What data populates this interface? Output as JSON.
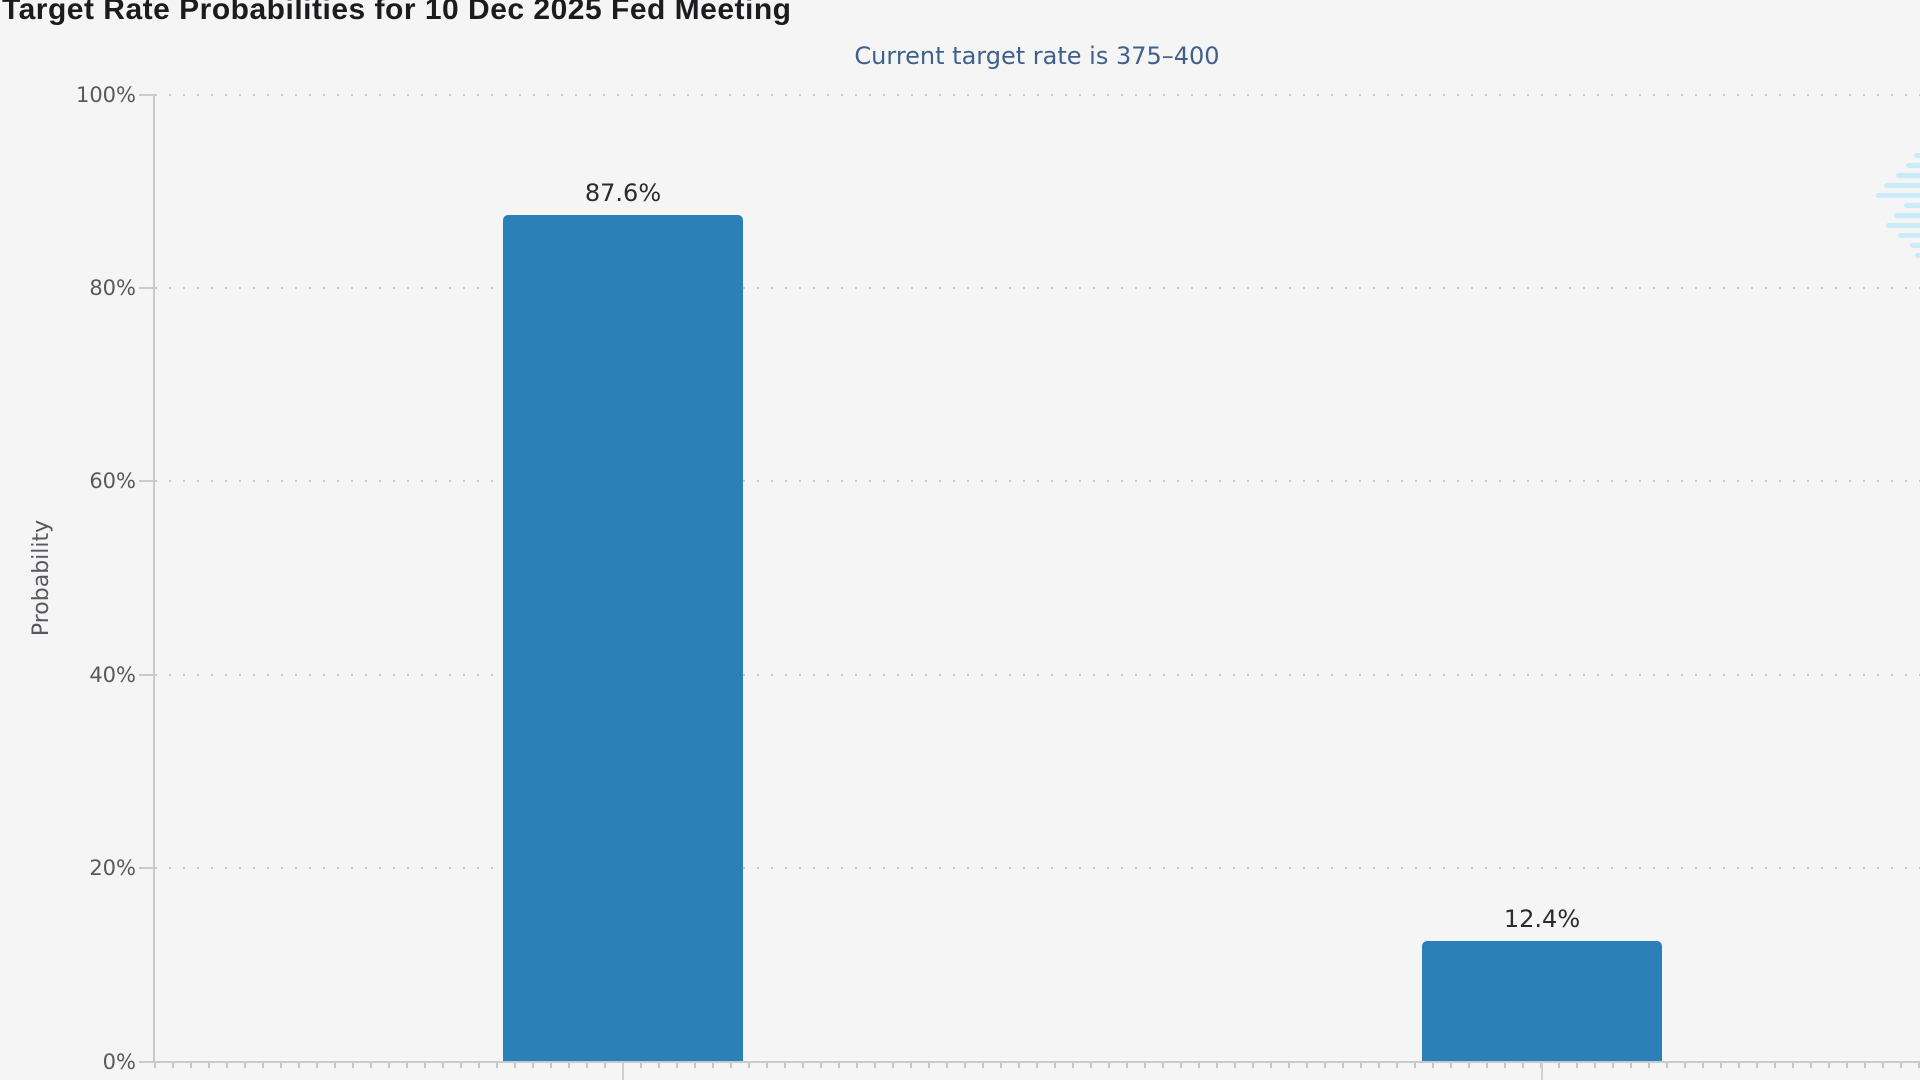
{
  "colors": {
    "background": "#f5f5f6",
    "bar": "#2b80b8",
    "axis": "#c9cacc",
    "grid_dot": "#c6c7c9",
    "tick_text": "#58595c",
    "title_text": "#1c1c1e",
    "subtitle_text": "#3f608c",
    "value_text": "#2b2b2b",
    "watermark": "#c9ecf8"
  },
  "header": {
    "title": "Target Rate Probabilities for 10 Dec 2025 Fed Meeting",
    "subtitle": "Current target rate is 375–400"
  },
  "chart_data": {
    "type": "bar",
    "title": "Target Rate Probabilities for 10 Dec 2025 Fed Meeting",
    "subtitle": "Current target rate is 375–400",
    "ylabel": "Probability",
    "xlabel": "",
    "ylim": [
      0,
      100
    ],
    "ytick_labels": [
      "0%",
      "20%",
      "40%",
      "60%",
      "80%",
      "100%"
    ],
    "series": [
      {
        "name": "Probability",
        "values": [
          87.6,
          12.4
        ]
      }
    ],
    "bar_value_labels": [
      "87.6%",
      "12.4%"
    ],
    "grid": "dotted horizontal gridlines at 20% intervals",
    "legend": "none",
    "x_tick_labels_visible": false
  },
  "watermark_icon": "cme-globe-watermark"
}
